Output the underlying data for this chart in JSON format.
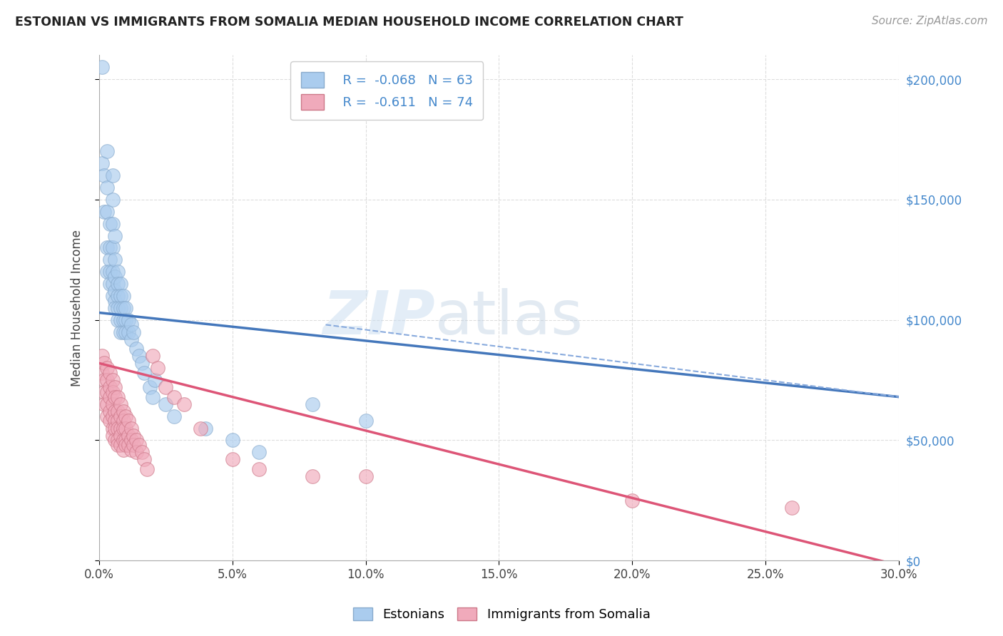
{
  "title": "ESTONIAN VS IMMIGRANTS FROM SOMALIA MEDIAN HOUSEHOLD INCOME CORRELATION CHART",
  "source": "Source: ZipAtlas.com",
  "ylabel": "Median Household Income",
  "xlim": [
    0,
    0.3
  ],
  "ylim": [
    0,
    210000
  ],
  "background_color": "#ffffff",
  "group1": {
    "name": "Estonians",
    "color": "#aaccee",
    "edge_color": "#88aacc",
    "R": -0.068,
    "N": 63,
    "line_color": "#4477bb",
    "trend_x0": 0.0,
    "trend_y0": 103000,
    "trend_x1": 0.3,
    "trend_y1": 68000,
    "x": [
      0.001,
      0.001,
      0.002,
      0.002,
      0.003,
      0.003,
      0.003,
      0.003,
      0.003,
      0.004,
      0.004,
      0.004,
      0.004,
      0.004,
      0.005,
      0.005,
      0.005,
      0.005,
      0.005,
      0.005,
      0.005,
      0.006,
      0.006,
      0.006,
      0.006,
      0.006,
      0.006,
      0.007,
      0.007,
      0.007,
      0.007,
      0.007,
      0.008,
      0.008,
      0.008,
      0.008,
      0.008,
      0.009,
      0.009,
      0.009,
      0.009,
      0.01,
      0.01,
      0.01,
      0.011,
      0.011,
      0.012,
      0.012,
      0.013,
      0.014,
      0.015,
      0.016,
      0.017,
      0.019,
      0.02,
      0.021,
      0.025,
      0.028,
      0.04,
      0.05,
      0.06,
      0.08,
      0.1
    ],
    "y": [
      205000,
      165000,
      160000,
      145000,
      170000,
      155000,
      145000,
      130000,
      120000,
      140000,
      130000,
      125000,
      120000,
      115000,
      160000,
      150000,
      140000,
      130000,
      120000,
      115000,
      110000,
      135000,
      125000,
      118000,
      112000,
      108000,
      105000,
      120000,
      115000,
      110000,
      105000,
      100000,
      115000,
      110000,
      105000,
      100000,
      95000,
      110000,
      105000,
      100000,
      95000,
      105000,
      100000,
      95000,
      100000,
      95000,
      98000,
      92000,
      95000,
      88000,
      85000,
      82000,
      78000,
      72000,
      68000,
      75000,
      65000,
      60000,
      55000,
      50000,
      45000,
      65000,
      58000
    ]
  },
  "group2": {
    "name": "Immigrants from Somalia",
    "color": "#f0aabb",
    "edge_color": "#cc7788",
    "R": -0.611,
    "N": 74,
    "line_color": "#dd5577",
    "trend_x0": 0.0,
    "trend_y0": 82000,
    "trend_x1": 0.3,
    "trend_y1": -2000,
    "x": [
      0.001,
      0.001,
      0.002,
      0.002,
      0.002,
      0.002,
      0.003,
      0.003,
      0.003,
      0.003,
      0.003,
      0.004,
      0.004,
      0.004,
      0.004,
      0.004,
      0.005,
      0.005,
      0.005,
      0.005,
      0.005,
      0.005,
      0.006,
      0.006,
      0.006,
      0.006,
      0.006,
      0.006,
      0.007,
      0.007,
      0.007,
      0.007,
      0.007,
      0.007,
      0.008,
      0.008,
      0.008,
      0.008,
      0.008,
      0.009,
      0.009,
      0.009,
      0.009,
      0.009,
      0.01,
      0.01,
      0.01,
      0.01,
      0.011,
      0.011,
      0.011,
      0.012,
      0.012,
      0.012,
      0.013,
      0.013,
      0.014,
      0.014,
      0.015,
      0.016,
      0.017,
      0.018,
      0.02,
      0.022,
      0.025,
      0.028,
      0.032,
      0.038,
      0.05,
      0.06,
      0.08,
      0.1,
      0.2,
      0.26
    ],
    "y": [
      85000,
      78000,
      82000,
      75000,
      70000,
      65000,
      80000,
      75000,
      70000,
      65000,
      60000,
      78000,
      72000,
      68000,
      62000,
      58000,
      75000,
      70000,
      65000,
      60000,
      55000,
      52000,
      72000,
      68000,
      62000,
      58000,
      55000,
      50000,
      68000,
      62000,
      58000,
      55000,
      50000,
      48000,
      65000,
      60000,
      55000,
      52000,
      48000,
      62000,
      58000,
      55000,
      50000,
      46000,
      60000,
      55000,
      50000,
      48000,
      58000,
      52000,
      48000,
      55000,
      50000,
      46000,
      52000,
      48000,
      50000,
      45000,
      48000,
      45000,
      42000,
      38000,
      85000,
      80000,
      72000,
      68000,
      65000,
      55000,
      42000,
      38000,
      35000,
      35000,
      25000,
      22000
    ]
  },
  "xticks": [
    0.0,
    0.05,
    0.1,
    0.15,
    0.2,
    0.25,
    0.3
  ],
  "xtick_labels": [
    "0.0%",
    "5.0%",
    "10.0%",
    "15.0%",
    "20.0%",
    "25.0%",
    "30.0%"
  ],
  "yticks": [
    0,
    50000,
    100000,
    150000,
    200000
  ],
  "ytick_labels": [
    "$0",
    "$50,000",
    "$100,000",
    "$150,000",
    "$200,000"
  ],
  "grid_color": "#dddddd",
  "watermark_zip": "ZIP",
  "watermark_atlas": "atlas"
}
